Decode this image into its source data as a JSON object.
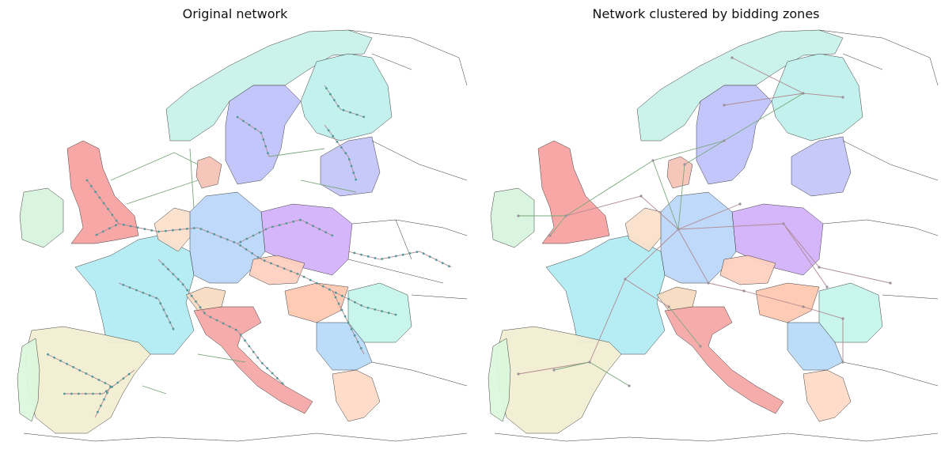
{
  "panels": [
    {
      "title": "Original network"
    },
    {
      "title": "Network clustered by bidding zones"
    }
  ],
  "colors": {
    "ac_line": "#b08a90",
    "dc_line": "#7aa87a",
    "bus": "#4e9a9a",
    "zones": {
      "GB": "#f8a3a3",
      "IE": "#d8f5df",
      "NI": "#ffd6c2",
      "FR": "#b3ecf3",
      "ES": "#f3efd3",
      "PT": "#dcf8dd",
      "DE": "#bcd8fa",
      "PL": "#d3b3fb",
      "CZ": "#ffd1c0",
      "AT": "#bde8f3",
      "CH": "#f8dcc2",
      "IT": "#f7a8a8",
      "BE": "#f7d8c2",
      "NL": "#fbe1cd",
      "DK": "#f7c3b8",
      "NO": "#c9f3ea",
      "SE": "#c0c4fb",
      "FI": "#c0f2ee",
      "BALTIC": "#c4c7fa",
      "HU": "#ffc9b1",
      "RO": "#c6f5ec",
      "BALKAN": "#b9dcf9",
      "GR": "#ffdcc8",
      "SI": "#dcf7d6"
    }
  }
}
